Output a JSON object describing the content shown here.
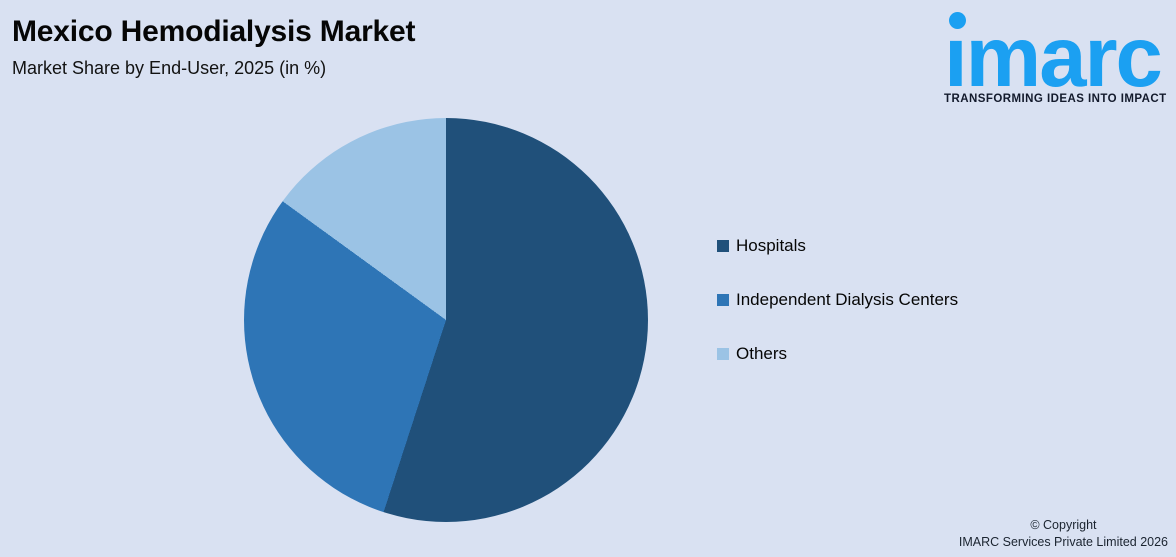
{
  "background_color": "#D9E1F2",
  "header": {
    "title": "Mexico Hemodialysis Market",
    "subtitle": "Market Share by End-User, 2025 (in %)"
  },
  "logo": {
    "wordmark": "imarc",
    "tagline": "TRANSFORMING IDEAS INTO IMPACT",
    "brand_color": "#1BA0F2",
    "tagline_color": "#131A2C"
  },
  "chart_data": {
    "type": "pie",
    "title": "Mexico Hemodialysis Market",
    "subtitle": "Market Share by End-User, 2025 (in %)",
    "labels": [
      "Hospitals",
      "Independent Dialysis Centers",
      "Others"
    ],
    "values": [
      55,
      30,
      15
    ],
    "colors": [
      "#20507A",
      "#2E75B6",
      "#9BC3E5"
    ],
    "start_angle_deg": 0,
    "direction": "clockwise",
    "legend_position": "right",
    "data_labels_shown": false
  },
  "legend": {
    "items": [
      {
        "label": "Hospitals",
        "color": "#20507A"
      },
      {
        "label": "Independent Dialysis Centers",
        "color": "#2E75B6"
      },
      {
        "label": "Others",
        "color": "#9BC3E5"
      }
    ]
  },
  "footer": {
    "copyright_line1": "© Copyright",
    "copyright_line2": "IMARC Services Private Limited 2026"
  }
}
